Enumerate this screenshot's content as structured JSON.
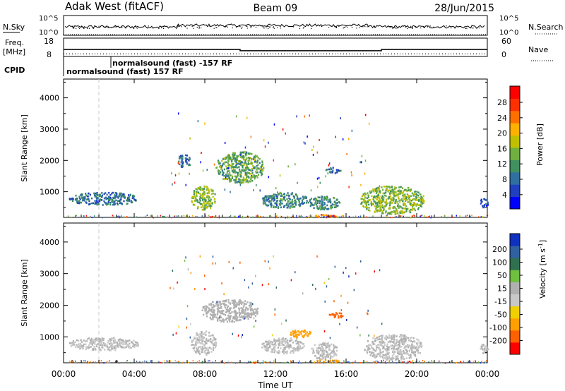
{
  "header": {
    "station": "Adak West (fitACF)",
    "beam": "Beam 09",
    "date": "28/Jun/2015"
  },
  "sky_panel": {
    "left_label": "N.Sky",
    "left_ticks": [
      "10^5",
      "10^0"
    ],
    "right_ticks": [
      "10^5",
      "10^0"
    ],
    "right_label": "N.Search"
  },
  "freq_panel": {
    "left_label_line1": "Freq.",
    "left_label_line2": "[MHz]",
    "left_ticks": [
      "18",
      "8"
    ],
    "right_ticks": [
      "60",
      "0"
    ],
    "right_label": "Nave",
    "levels": {
      "freq_high": 13.5,
      "freq_low": 12.5,
      "low_start_hour": 10.0,
      "low_end_hour": 18.0,
      "nave": 12
    }
  },
  "cpid": {
    "label": "CPID",
    "entries": [
      "normalsound (fast) -157 RF",
      "normalsound (fast) 157 RF"
    ]
  },
  "time_axis": {
    "ticks": [
      "00:00",
      "04:00",
      "08:00",
      "12:00",
      "16:00",
      "20:00",
      "00:00"
    ],
    "label": "Time UT",
    "range_hours": [
      0,
      24
    ],
    "marker_hour": 2.0
  },
  "power_panel": {
    "ylabel": "Slant Range [km]",
    "yticks": [
      "4000",
      "3000",
      "2000",
      "1000"
    ],
    "colorbar": {
      "label": "Power [dB]",
      "ticks": [
        "28",
        "24",
        "20",
        "16",
        "12",
        "8",
        "4"
      ],
      "colors": [
        "#0000ff",
        "#2040c0",
        "#3070a0",
        "#409060",
        "#70b040",
        "#c0c000",
        "#ffb000",
        "#ff7000",
        "#ff3000",
        "#ff0000"
      ]
    }
  },
  "velocity_panel": {
    "ylabel": "Slant Range [km]",
    "yticks": [
      "4000",
      "3000",
      "2000",
      "1000"
    ],
    "colorbar": {
      "label": "Velocity [m s",
      "label_sup": "-1",
      "label_end": "]",
      "ticks": [
        "200",
        "100",
        "50",
        "15",
        "-15",
        "-50",
        "-100",
        "-200"
      ],
      "colors": [
        "#1030c0",
        "#3060a0",
        "#307050",
        "#70c040",
        "#b0b0b0",
        "#c8c8c8",
        "#f0d000",
        "#ffa000",
        "#ff6000",
        "#ff0000"
      ]
    }
  },
  "chart_data": [
    {
      "type": "heatmap",
      "title": "Power",
      "ylabel": "Slant Range [km]",
      "xlabel": "Time UT",
      "xlim": [
        0,
        24
      ],
      "ylim": [
        180,
        4600
      ],
      "colorbar": "Power [dB]",
      "clim": [
        0,
        30
      ],
      "regions": [
        {
          "t0": 0.3,
          "t1": 4.2,
          "r0": 600,
          "r1": 1000,
          "v": 8
        },
        {
          "t0": 6.4,
          "t1": 7.2,
          "r0": 1800,
          "r1": 2200,
          "v": 7
        },
        {
          "t0": 7.2,
          "t1": 8.6,
          "r0": 450,
          "r1": 1200,
          "v": 14
        },
        {
          "t0": 8.6,
          "t1": 11.3,
          "r0": 1300,
          "r1": 2300,
          "v": 12
        },
        {
          "t0": 11.2,
          "t1": 13.8,
          "r0": 500,
          "r1": 1000,
          "v": 9
        },
        {
          "t0": 13.8,
          "t1": 15.6,
          "r0": 450,
          "r1": 900,
          "v": 10
        },
        {
          "t0": 14.8,
          "t1": 15.7,
          "r0": 1600,
          "r1": 1800,
          "v": 8
        },
        {
          "t0": 14.2,
          "t1": 15.6,
          "r0": 200,
          "r1": 300,
          "v": 22
        },
        {
          "t0": 16.8,
          "t1": 20.4,
          "r0": 300,
          "r1": 1200,
          "v": 14
        },
        {
          "t0": 23.5,
          "t1": 24.0,
          "r0": 500,
          "r1": 800,
          "v": 6
        }
      ]
    },
    {
      "type": "heatmap",
      "title": "Velocity",
      "ylabel": "Slant Range [km]",
      "xlabel": "Time UT",
      "xlim": [
        0,
        24
      ],
      "ylim": [
        180,
        4600
      ],
      "colorbar": "Velocity [m s-1]",
      "clim": [
        -250,
        250
      ],
      "regions": [
        {
          "t0": 0.3,
          "t1": 4.2,
          "r0": 600,
          "r1": 1000,
          "v": 0
        },
        {
          "t0": 7.2,
          "t1": 8.6,
          "r0": 450,
          "r1": 1200,
          "v": 0
        },
        {
          "t0": 7.8,
          "t1": 11.0,
          "r0": 1500,
          "r1": 2200,
          "v": 5
        },
        {
          "t0": 11.2,
          "t1": 13.6,
          "r0": 500,
          "r1": 1000,
          "v": 0
        },
        {
          "t0": 12.8,
          "t1": 14.0,
          "r0": 1000,
          "r1": 1250,
          "v": -60
        },
        {
          "t0": 15.0,
          "t1": 15.8,
          "r0": 1600,
          "r1": 1800,
          "v": -120
        },
        {
          "t0": 14.0,
          "t1": 15.5,
          "r0": 300,
          "r1": 850,
          "v": 0
        },
        {
          "t0": 14.2,
          "t1": 15.6,
          "r0": 200,
          "r1": 300,
          "v": -70
        },
        {
          "t0": 17.0,
          "t1": 20.3,
          "r0": 300,
          "r1": 1100,
          "v": 0
        },
        {
          "t0": 23.5,
          "t1": 24.0,
          "r0": 500,
          "r1": 800,
          "v": 0
        }
      ]
    }
  ]
}
